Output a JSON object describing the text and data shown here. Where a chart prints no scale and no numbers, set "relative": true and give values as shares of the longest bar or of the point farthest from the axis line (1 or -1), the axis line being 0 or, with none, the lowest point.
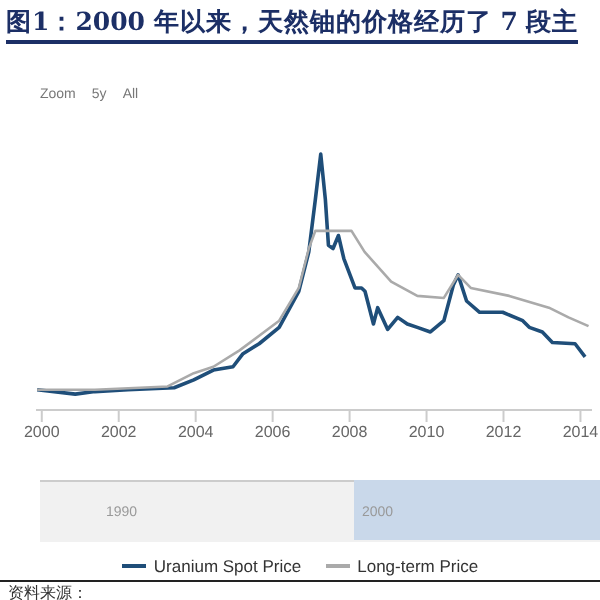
{
  "chart_data": {
    "type": "line",
    "title": "图1：2000 年以来，天然铀的价格经历了 7 段主",
    "annotations": [
      "Zoom",
      "5y",
      "All",
      "1990",
      "2000",
      "资料来源："
    ],
    "relative": true,
    "xlim": [
      1999.85,
      2014.3
    ],
    "xticks": [
      2000,
      2002,
      2004,
      2006,
      2008,
      2010,
      2012,
      2014
    ],
    "legend": "bottom",
    "marker": "none",
    "line_style": "solid",
    "series": [
      {
        "name": "Uranium Spot Price",
        "color": "#1f4e79",
        "x": [
          1999.88,
          2000.87,
          2001.38,
          2002.24,
          2003.44,
          2003.95,
          2004.46,
          2004.97,
          2005.23,
          2005.65,
          2006.17,
          2006.68,
          2006.94,
          2007.11,
          2007.25,
          2007.37,
          2007.45,
          2007.57,
          2007.71,
          2007.85,
          2008.14,
          2008.31,
          2008.4,
          2008.62,
          2008.73,
          2008.99,
          2009.25,
          2009.5,
          2009.76,
          2010.1,
          2010.45,
          2010.7,
          2010.82,
          2011.04,
          2011.38,
          2011.98,
          2012.5,
          2012.67,
          2013.01,
          2013.27,
          2013.86,
          2014.12
        ],
        "values": [
          0.079,
          0.062,
          0.072,
          0.079,
          0.087,
          0.118,
          0.156,
          0.169,
          0.22,
          0.259,
          0.323,
          0.464,
          0.618,
          0.823,
          1,
          0.823,
          0.644,
          0.631,
          0.682,
          0.592,
          0.477,
          0.477,
          0.464,
          0.336,
          0.4,
          0.315,
          0.362,
          0.336,
          0.323,
          0.305,
          0.349,
          0.49,
          0.528,
          0.426,
          0.382,
          0.382,
          0.349,
          0.323,
          0.305,
          0.264,
          0.259,
          0.208
        ]
      },
      {
        "name": "Long-term Price",
        "color": "#aaaaaa",
        "x": [
          1999.88,
          2001.38,
          2003.27,
          2003.95,
          2004.46,
          2005.14,
          2006.17,
          2006.68,
          2006.94,
          2007.11,
          2008.05,
          2008.39,
          2009.08,
          2009.76,
          2010.45,
          2010.82,
          2011.15,
          2012.15,
          2013.18,
          2013.69,
          2014.21
        ],
        "values": [
          0.079,
          0.079,
          0.092,
          0.144,
          0.169,
          0.233,
          0.349,
          0.477,
          0.631,
          0.7,
          0.7,
          0.618,
          0.502,
          0.446,
          0.438,
          0.528,
          0.477,
          0.446,
          0.4,
          0.362,
          0.328
        ]
      }
    ]
  }
}
